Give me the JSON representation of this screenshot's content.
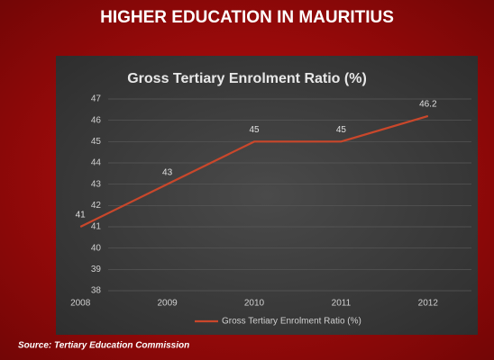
{
  "header": {
    "title": "HIGHER EDUCATION IN MAURITIUS"
  },
  "chart_data": {
    "type": "line",
    "title": "Gross Tertiary Enrolment Ratio (%)",
    "categories": [
      "2008",
      "2009",
      "2010",
      "2011",
      "2012"
    ],
    "series": [
      {
        "name": "Gross Tertiary Enrolment Ratio (%)",
        "color": "#c9472b",
        "values": [
          41,
          43,
          45,
          45,
          46.2
        ]
      }
    ],
    "ylim": [
      38,
      47
    ],
    "yticks": [
      38,
      39,
      40,
      41,
      42,
      43,
      44,
      45,
      46,
      47
    ],
    "grid": true,
    "legend": "bottom"
  },
  "footer": {
    "source": "Source: Tertiary Education Commission"
  }
}
